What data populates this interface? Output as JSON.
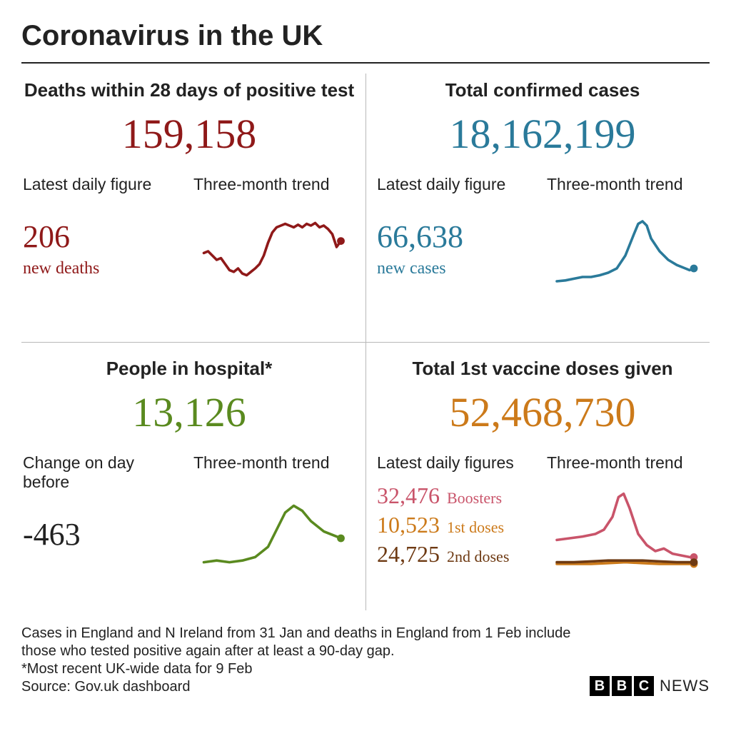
{
  "title": "Coronavirus in the UK",
  "colors": {
    "deaths": "#8f1919",
    "cases": "#2a7a9a",
    "hospital": "#5a8a1f",
    "vaccine": "#cc7a1a",
    "boosters": "#c9546a",
    "first_doses": "#cc7a1a",
    "second_doses": "#6e3a13",
    "text": "#222222",
    "divider": "#b8b8b8",
    "background": "#ffffff"
  },
  "quad1": {
    "title": "Deaths within 28 days of positive test",
    "big_number": "159,158",
    "sub_left": "Latest daily figure",
    "sub_right": "Three-month trend",
    "daily_number": "206",
    "daily_caption": "new deaths",
    "spark": {
      "color": "#8f1919",
      "line_width": 3,
      "marker_radius": 4.5,
      "points": [
        [
          0,
          52
        ],
        [
          5,
          50
        ],
        [
          10,
          55
        ],
        [
          15,
          60
        ],
        [
          20,
          58
        ],
        [
          25,
          65
        ],
        [
          30,
          72
        ],
        [
          35,
          74
        ],
        [
          40,
          70
        ],
        [
          45,
          76
        ],
        [
          50,
          78
        ],
        [
          55,
          74
        ],
        [
          60,
          70
        ],
        [
          65,
          65
        ],
        [
          70,
          55
        ],
        [
          75,
          40
        ],
        [
          80,
          28
        ],
        [
          85,
          22
        ],
        [
          90,
          20
        ],
        [
          95,
          18
        ],
        [
          100,
          20
        ],
        [
          105,
          22
        ],
        [
          110,
          19
        ],
        [
          115,
          22
        ],
        [
          120,
          18
        ],
        [
          125,
          20
        ],
        [
          130,
          17
        ],
        [
          135,
          22
        ],
        [
          140,
          20
        ],
        [
          145,
          24
        ],
        [
          150,
          30
        ],
        [
          155,
          45
        ],
        [
          160,
          38
        ]
      ]
    }
  },
  "quad2": {
    "title": "Total confirmed cases",
    "big_number": "18,162,199",
    "sub_left": "Latest daily figure",
    "sub_right": "Three-month trend",
    "daily_number": "66,638",
    "daily_caption": "new cases",
    "spark": {
      "color": "#2a7a9a",
      "line_width": 3,
      "marker_radius": 4.5,
      "points": [
        [
          0,
          85
        ],
        [
          10,
          84
        ],
        [
          20,
          82
        ],
        [
          30,
          80
        ],
        [
          40,
          80
        ],
        [
          50,
          78
        ],
        [
          60,
          75
        ],
        [
          70,
          70
        ],
        [
          80,
          55
        ],
        [
          90,
          30
        ],
        [
          95,
          18
        ],
        [
          100,
          15
        ],
        [
          105,
          20
        ],
        [
          110,
          35
        ],
        [
          120,
          50
        ],
        [
          130,
          60
        ],
        [
          140,
          66
        ],
        [
          150,
          70
        ],
        [
          155,
          72
        ],
        [
          160,
          70
        ]
      ]
    }
  },
  "quad3": {
    "title": "People in hospital*",
    "big_number": "13,126",
    "sub_left": "Change on day before",
    "sub_right": "Three-month trend",
    "daily_number": "-463",
    "spark": {
      "color": "#5a8a1f",
      "line_width": 3,
      "marker_radius": 4.5,
      "points": [
        [
          0,
          88
        ],
        [
          15,
          86
        ],
        [
          30,
          88
        ],
        [
          45,
          86
        ],
        [
          60,
          82
        ],
        [
          75,
          70
        ],
        [
          85,
          50
        ],
        [
          95,
          30
        ],
        [
          105,
          22
        ],
        [
          115,
          28
        ],
        [
          125,
          40
        ],
        [
          140,
          52
        ],
        [
          155,
          58
        ],
        [
          160,
          60
        ]
      ]
    }
  },
  "quad4": {
    "title": "Total 1st vaccine doses given",
    "big_number": "52,468,730",
    "sub_left": "Latest daily figures",
    "sub_right": "Three-month trend",
    "rows": [
      {
        "num": "32,476",
        "label": "Boosters",
        "color": "#c9546a"
      },
      {
        "num": "10,523",
        "label": "1st doses",
        "color": "#cc7a1a"
      },
      {
        "num": "24,725",
        "label": "2nd doses",
        "color": "#6e3a13"
      }
    ],
    "spark": {
      "line_width": 3,
      "marker_radius": 4.5,
      "series": [
        {
          "color": "#c9546a",
          "points": [
            [
              0,
              62
            ],
            [
              15,
              60
            ],
            [
              30,
              58
            ],
            [
              45,
              55
            ],
            [
              55,
              50
            ],
            [
              65,
              35
            ],
            [
              72,
              12
            ],
            [
              78,
              8
            ],
            [
              85,
              25
            ],
            [
              95,
              55
            ],
            [
              105,
              68
            ],
            [
              115,
              75
            ],
            [
              125,
              72
            ],
            [
              135,
              78
            ],
            [
              145,
              80
            ],
            [
              155,
              82
            ],
            [
              160,
              82
            ]
          ]
        },
        {
          "color": "#cc7a1a",
          "points": [
            [
              0,
              90
            ],
            [
              20,
              90
            ],
            [
              40,
              90
            ],
            [
              60,
              89
            ],
            [
              80,
              88
            ],
            [
              100,
              89
            ],
            [
              120,
              90
            ],
            [
              140,
              90
            ],
            [
              160,
              90
            ]
          ]
        },
        {
          "color": "#6e3a13",
          "points": [
            [
              0,
              88
            ],
            [
              20,
              88
            ],
            [
              40,
              87
            ],
            [
              60,
              86
            ],
            [
              80,
              86
            ],
            [
              100,
              86
            ],
            [
              120,
              87
            ],
            [
              140,
              88
            ],
            [
              160,
              88
            ]
          ]
        }
      ]
    }
  },
  "footnote1": "Cases in England and N Ireland from 31 Jan and deaths in England from 1 Feb include those who tested positive again after at least a 90-day gap.",
  "footnote2": "*Most recent UK-wide data for 9 Feb",
  "source": "Source: Gov.uk dashboard",
  "bbc": {
    "b1": "B",
    "b2": "B",
    "b3": "C",
    "news": "NEWS"
  }
}
